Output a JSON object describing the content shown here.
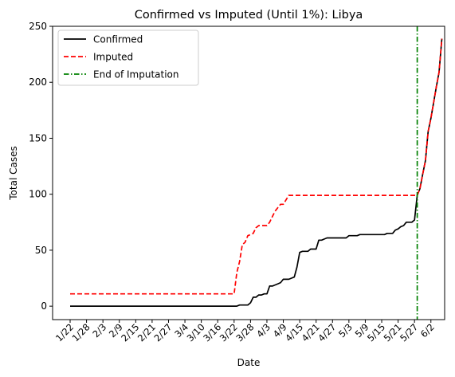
{
  "chart_data": {
    "type": "line",
    "title": "Confirmed vs Imputed (Until 1%): Libya",
    "xlabel": "Date",
    "ylabel": "Total Cases",
    "ylim": [
      -12,
      250
    ],
    "yticks": [
      0,
      50,
      100,
      150,
      200,
      250
    ],
    "xticks": [
      "1/22",
      "1/28",
      "2/3",
      "2/9",
      "2/15",
      "2/21",
      "2/27",
      "3/4",
      "3/10",
      "3/16",
      "3/22",
      "3/28",
      "4/3",
      "4/9",
      "4/15",
      "4/21",
      "4/27",
      "5/3",
      "5/9",
      "5/15",
      "5/21",
      "5/27",
      "6/2"
    ],
    "x_start": "1/22",
    "x_end": "6/5",
    "grid": false,
    "legend_position": "top-left",
    "colors": {
      "confirmed": "#000000",
      "imputed": "#ff0000",
      "end": "#008000"
    },
    "series": [
      {
        "name": "Confirmed",
        "style": "solid",
        "points": [
          [
            "1/22",
            0
          ],
          [
            "3/23",
            0
          ],
          [
            "3/24",
            1
          ],
          [
            "3/27",
            1
          ],
          [
            "3/28",
            3
          ],
          [
            "3/29",
            8
          ],
          [
            "3/30",
            8
          ],
          [
            "3/31",
            10
          ],
          [
            "4/1",
            10
          ],
          [
            "4/2",
            11
          ],
          [
            "4/3",
            11
          ],
          [
            "4/4",
            18
          ],
          [
            "4/5",
            18
          ],
          [
            "4/6",
            19
          ],
          [
            "4/7",
            20
          ],
          [
            "4/8",
            21
          ],
          [
            "4/9",
            24
          ],
          [
            "4/10",
            24
          ],
          [
            "4/11",
            24
          ],
          [
            "4/12",
            25
          ],
          [
            "4/13",
            26
          ],
          [
            "4/14",
            35
          ],
          [
            "4/15",
            48
          ],
          [
            "4/16",
            49
          ],
          [
            "4/17",
            49
          ],
          [
            "4/18",
            49
          ],
          [
            "4/19",
            51
          ],
          [
            "4/20",
            51
          ],
          [
            "4/21",
            51
          ],
          [
            "4/22",
            59
          ],
          [
            "4/23",
            59
          ],
          [
            "4/24",
            60
          ],
          [
            "4/25",
            61
          ],
          [
            "4/26",
            61
          ],
          [
            "5/2",
            61
          ],
          [
            "5/3",
            63
          ],
          [
            "5/6",
            63
          ],
          [
            "5/7",
            64
          ],
          [
            "5/16",
            64
          ],
          [
            "5/17",
            65
          ],
          [
            "5/19",
            65
          ],
          [
            "5/20",
            68
          ],
          [
            "5/21",
            69
          ],
          [
            "5/22",
            71
          ],
          [
            "5/23",
            72
          ],
          [
            "5/24",
            75
          ],
          [
            "5/25",
            75
          ],
          [
            "5/26",
            75
          ],
          [
            "5/27",
            77
          ],
          [
            "5/28",
            99
          ],
          [
            "5/29",
            105
          ],
          [
            "5/30",
            118
          ],
          [
            "5/31",
            130
          ],
          [
            "6/1",
            156
          ],
          [
            "6/2",
            168
          ],
          [
            "6/3",
            182
          ],
          [
            "6/4",
            196
          ],
          [
            "6/5",
            209
          ],
          [
            "6/6",
            239
          ]
        ]
      },
      {
        "name": "Imputed",
        "style": "dashed",
        "points": [
          [
            "1/22",
            11
          ],
          [
            "3/22",
            11
          ],
          [
            "3/23",
            30
          ],
          [
            "3/24",
            40
          ],
          [
            "3/25",
            55
          ],
          [
            "3/26",
            57
          ],
          [
            "3/27",
            63
          ],
          [
            "3/28",
            64
          ],
          [
            "3/29",
            65
          ],
          [
            "3/30",
            70
          ],
          [
            "3/31",
            72
          ],
          [
            "4/1",
            72
          ],
          [
            "4/2",
            72
          ],
          [
            "4/3",
            72
          ],
          [
            "4/4",
            75
          ],
          [
            "4/5",
            80
          ],
          [
            "4/6",
            85
          ],
          [
            "4/7",
            88
          ],
          [
            "4/8",
            91
          ],
          [
            "4/9",
            91
          ],
          [
            "4/10",
            95
          ],
          [
            "4/11",
            99
          ],
          [
            "5/27",
            99
          ],
          [
            "5/28",
            99
          ],
          [
            "5/29",
            105
          ],
          [
            "5/30",
            118
          ],
          [
            "5/31",
            130
          ],
          [
            "6/1",
            156
          ],
          [
            "6/2",
            168
          ],
          [
            "6/3",
            182
          ],
          [
            "6/4",
            196
          ],
          [
            "6/5",
            209
          ],
          [
            "6/6",
            239
          ]
        ]
      }
    ],
    "end_of_imputation": {
      "name": "End of Imputation",
      "x": "5/28",
      "style": "dashdot"
    }
  }
}
